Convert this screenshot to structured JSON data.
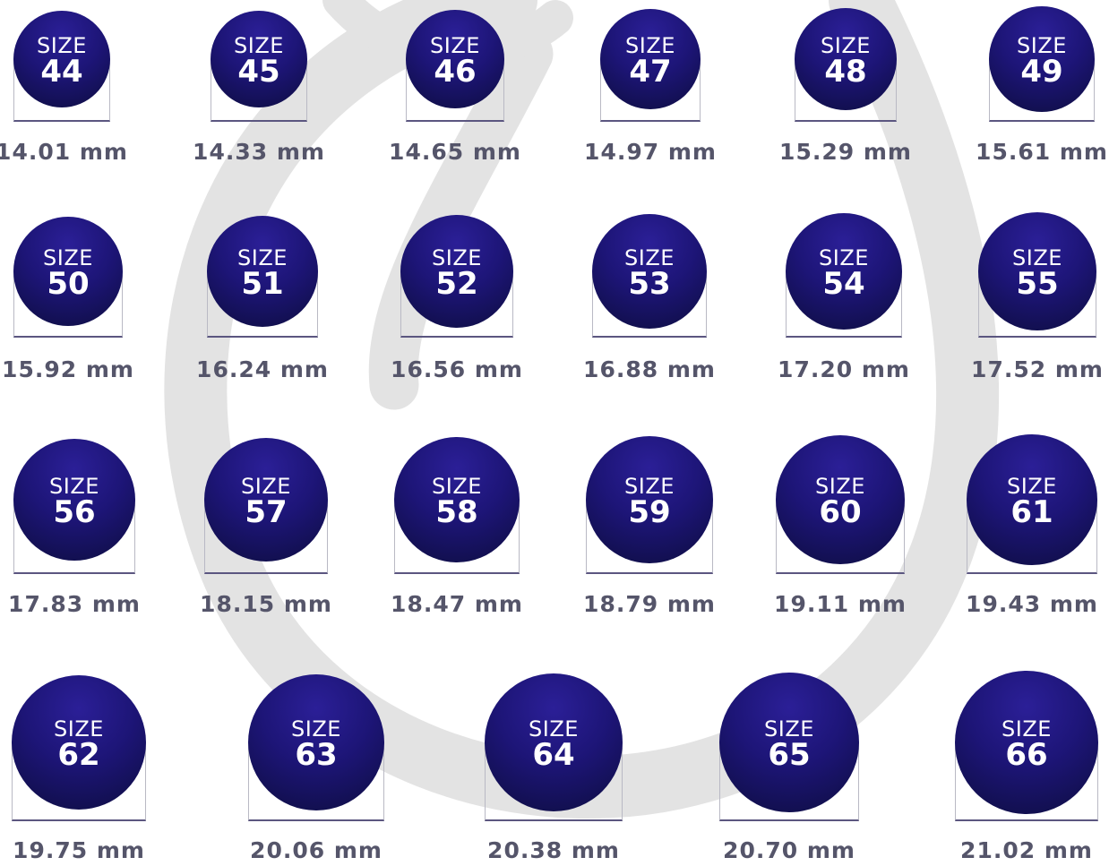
{
  "colors": {
    "ring_top": "#2b1f97",
    "ring_bottom": "#0d0d3f",
    "measurement_text": "#55556a",
    "watermark": "#e2e2e2"
  },
  "rows": [
    [
      {
        "label": "SIZE",
        "size": "44",
        "diameter": "14.01 mm"
      },
      {
        "label": "SIZE",
        "size": "45",
        "diameter": "14.33 mm"
      },
      {
        "label": "SIZE",
        "size": "46",
        "diameter": "14.65 mm"
      },
      {
        "label": "SIZE",
        "size": "47",
        "diameter": "14.97 mm"
      },
      {
        "label": "SIZE",
        "size": "48",
        "diameter": "15.29 mm"
      },
      {
        "label": "SIZE",
        "size": "49",
        "diameter": "15.61 mm"
      }
    ],
    [
      {
        "label": "SIZE",
        "size": "50",
        "diameter": "15.92 mm"
      },
      {
        "label": "SIZE",
        "size": "51",
        "diameter": "16.24 mm"
      },
      {
        "label": "SIZE",
        "size": "52",
        "diameter": "16.56 mm"
      },
      {
        "label": "SIZE",
        "size": "53",
        "diameter": "16.88 mm"
      },
      {
        "label": "SIZE",
        "size": "54",
        "diameter": "17.20 mm"
      },
      {
        "label": "SIZE",
        "size": "55",
        "diameter": "17.52 mm"
      }
    ],
    [
      {
        "label": "SIZE",
        "size": "56",
        "diameter": "17.83 mm"
      },
      {
        "label": "SIZE",
        "size": "57",
        "diameter": "18.15 mm"
      },
      {
        "label": "SIZE",
        "size": "58",
        "diameter": "18.47 mm"
      },
      {
        "label": "SIZE",
        "size": "59",
        "diameter": "18.79 mm"
      },
      {
        "label": "SIZE",
        "size": "60",
        "diameter": "19.11 mm"
      },
      {
        "label": "SIZE",
        "size": "61",
        "diameter": "19.43 mm"
      }
    ],
    [
      {
        "label": "SIZE",
        "size": "62",
        "diameter": "19.75 mm"
      },
      {
        "label": "SIZE",
        "size": "63",
        "diameter": "20.06 mm"
      },
      {
        "label": "SIZE",
        "size": "64",
        "diameter": "20.38 mm"
      },
      {
        "label": "SIZE",
        "size": "65",
        "diameter": "20.70 mm"
      },
      {
        "label": "SIZE",
        "size": "66",
        "diameter": "21.02 mm"
      }
    ]
  ]
}
